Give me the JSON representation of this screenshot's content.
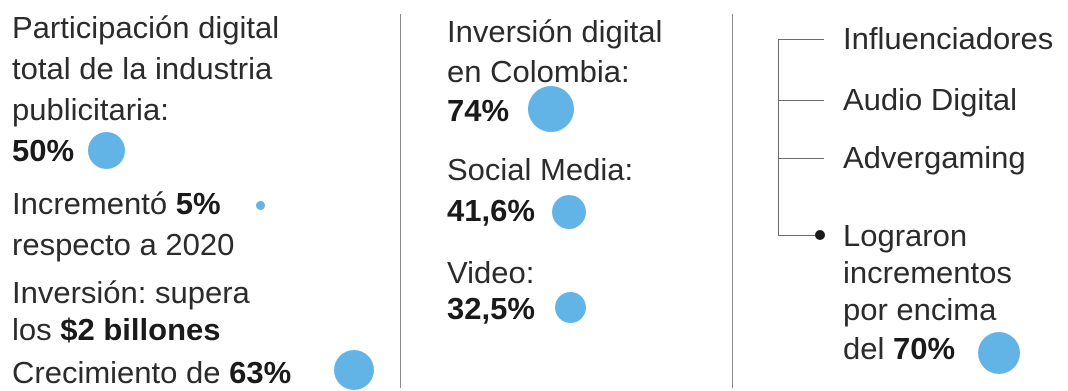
{
  "col1": {
    "participacion_text": "Participación digital total de la industria publicitaria:",
    "participacion_line1": "Participación digital",
    "participacion_line2": "total de la industria",
    "participacion_line3": "publicitaria:",
    "participacion_value": "50%",
    "incremento_prefix": "Incrementó",
    "incremento_value": "5%",
    "incremento_suffix": "respecto a 2020",
    "inversion_line1": "Inversión: supera",
    "inversion_prefix": "los",
    "inversion_value": "$2 billones",
    "crecimiento_prefix": "Crecimiento de",
    "crecimiento_value": "63%"
  },
  "col2": {
    "inversion_line1": "Inversión digital",
    "inversion_line2": "en Colombia:",
    "inversion_value": "74%",
    "social_label": "Social Media:",
    "social_value": "41,6%",
    "video_label": "Video:",
    "video_value": "32,5%"
  },
  "col3": {
    "items": [
      "Influenciadores",
      "Audio Digital",
      "Advergaming"
    ],
    "logro_line1": "Lograron",
    "logro_line2": "incrementos",
    "logro_line3": "por encima",
    "logro_prefix": "del",
    "logro_value": "70%"
  },
  "colors": {
    "accent_dot": "#62b4e6",
    "text": "#2b2b2b"
  }
}
